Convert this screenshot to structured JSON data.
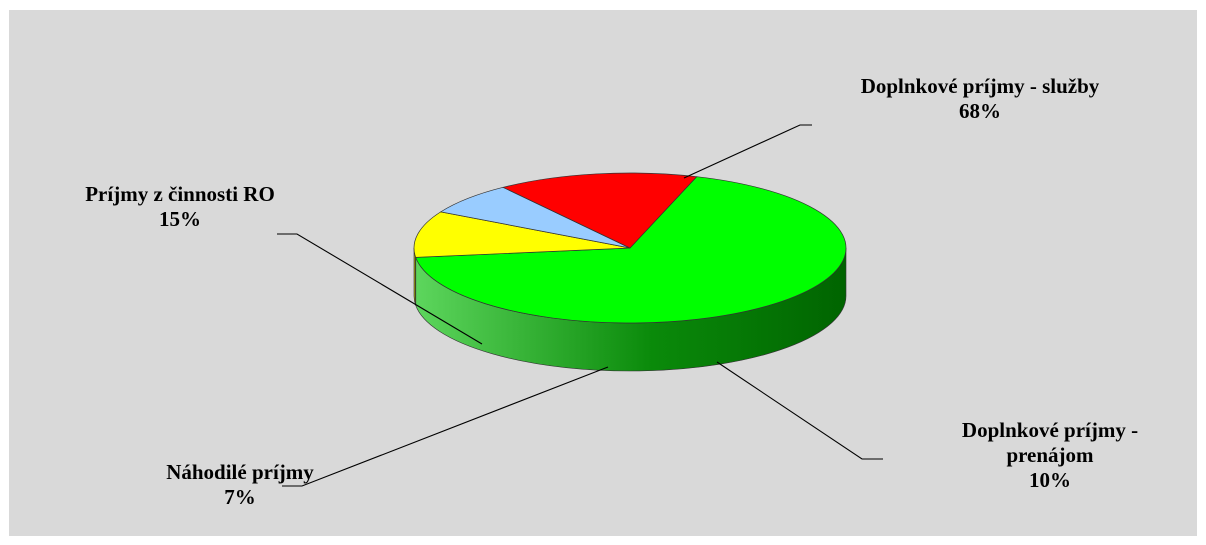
{
  "chart_data": {
    "type": "pie",
    "three_d": true,
    "series": [
      {
        "values": [
          68,
          10,
          7,
          15
        ],
        "labels": [
          "Doplnkové príjmy - služby",
          "Doplnkové príjmy - prenájom",
          "Náhodilé príjmy",
          "Príjmy z činnosti RO"
        ],
        "percent_labels": [
          "68%",
          "10%",
          "7%",
          "15%"
        ]
      }
    ],
    "slice_colors": [
      "#00ff00",
      "#ffff00",
      "#99ccff",
      "#ff0000"
    ],
    "side_colors": [
      "#008000",
      "#808000",
      "#6f8eaa",
      "#990000"
    ],
    "background_color": "#d9d9d9",
    "legend": "none",
    "data_label_lines": {
      "slice0": [
        "Doplnkové príjmy - služby",
        "68%"
      ],
      "slice1": [
        "Doplnkové príjmy -",
        "prenájom",
        "10%"
      ],
      "slice2": [
        "Náhodilé príjmy",
        "7%"
      ],
      "slice3": [
        "Príjmy z činnosti RO",
        "15%"
      ]
    }
  }
}
